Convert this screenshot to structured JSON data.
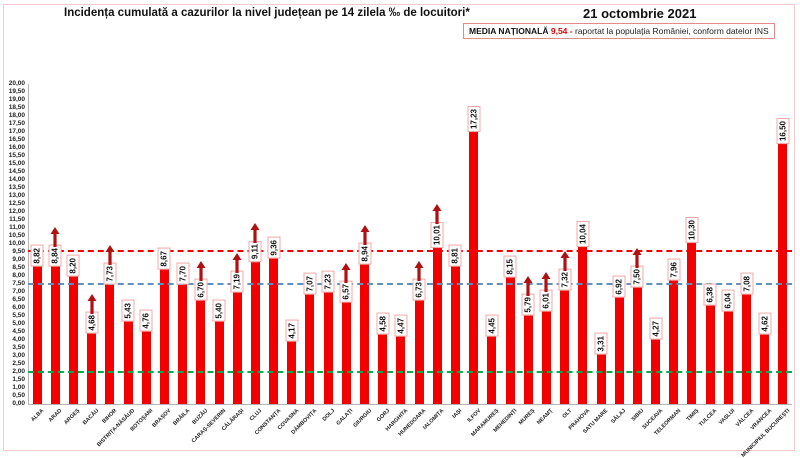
{
  "header": {
    "title": "Incidența cumulată a cazurilor la nivel județean pe 14 zilela ‰ de locuitori*",
    "date": "21 octombrie 2021",
    "media_box": {
      "label": "MEDIA NAȚIONALĂ",
      "value": "9,54 -",
      "note": "raportat la populația României, conform datelor INS"
    }
  },
  "chart_data": {
    "type": "bar",
    "title": "Incidența cumulată a cazurilor la nivel județean pe 14 zilela ‰ de locuitori*",
    "date_label": "21 octombrie 2021",
    "national_average": 9.54,
    "ylim": [
      0,
      20
    ],
    "ytick_step": 0.5,
    "grid": false,
    "legend_position": "none",
    "bar_color": "#f20000",
    "arrow_color": "#b01010",
    "value_box_border": "#f0a8a8",
    "reference_lines": [
      {
        "name": "media-nationala",
        "value": 9.54,
        "color": "#f20000"
      },
      {
        "name": "reference-7-50",
        "value": 7.5,
        "color": "#6290bd"
      },
      {
        "name": "reference-2-00",
        "value": 2.0,
        "color": "#00b050"
      }
    ],
    "categories": [
      "ALBA",
      "ARAD",
      "ARGEȘ",
      "BACĂU",
      "BIHOR",
      "BISTRIȚA-NĂSĂUD",
      "BOTOȘANI",
      "BRAȘOV",
      "BRĂILA",
      "BUZĂU",
      "CARAȘ-SEVERIN",
      "CĂLĂRAȘI",
      "CLUJ",
      "CONSTANȚA",
      "COVASNA",
      "DÂMBOVIȚA",
      "DOLJ",
      "GALAȚI",
      "GIURGIU",
      "GORJ",
      "HARGHITA",
      "HUNEDOARA",
      "IALOMIȚA",
      "IAȘI",
      "ILFOV",
      "MARAMUREȘ",
      "MEHEDINȚI",
      "MUREȘ",
      "NEAMȚ",
      "OLT",
      "PRAHOVA",
      "SATU MARE",
      "SĂLAJ",
      "SIBIU",
      "SUCEAVA",
      "TELEORMAN",
      "TIMIȘ",
      "TULCEA",
      "VASLUI",
      "VÂLCEA",
      "VRANCEA",
      "MUNICIPIUL BUCUREȘTI"
    ],
    "values": [
      8.82,
      8.84,
      8.2,
      4.68,
      7.73,
      5.43,
      4.76,
      8.67,
      7.7,
      6.7,
      5.4,
      7.19,
      9.11,
      9.36,
      4.17,
      7.07,
      7.23,
      6.57,
      8.94,
      4.58,
      4.47,
      6.73,
      10.01,
      8.81,
      17.23,
      4.45,
      8.15,
      5.79,
      6.01,
      7.32,
      10.04,
      3.31,
      6.92,
      7.5,
      4.27,
      7.96,
      10.3,
      6.38,
      6.04,
      7.08,
      4.62,
      16.5
    ],
    "rising_arrow": [
      false,
      true,
      false,
      true,
      true,
      false,
      false,
      false,
      false,
      true,
      false,
      true,
      true,
      false,
      false,
      false,
      false,
      true,
      true,
      false,
      false,
      true,
      true,
      false,
      false,
      false,
      false,
      true,
      true,
      true,
      false,
      false,
      false,
      true,
      false,
      false,
      false,
      false,
      false,
      false,
      false,
      false
    ]
  }
}
